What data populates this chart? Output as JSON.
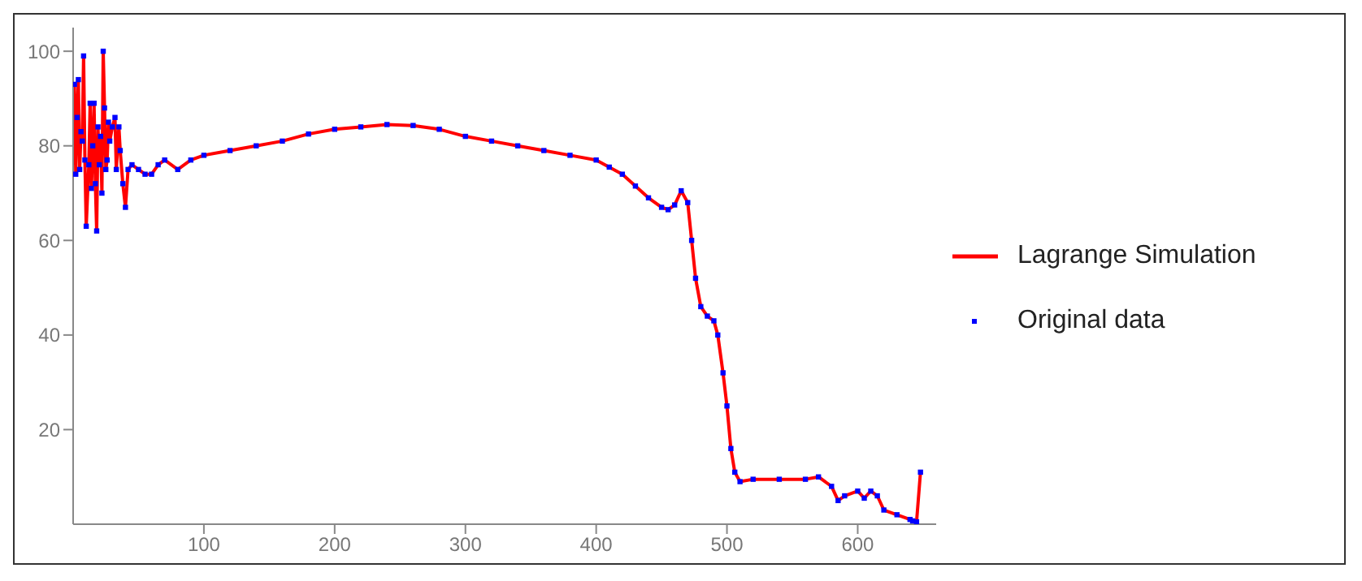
{
  "chart_data": {
    "type": "line",
    "x": [
      1,
      2,
      3,
      4,
      5,
      6,
      7,
      8,
      9,
      10,
      12,
      13,
      14,
      15,
      16,
      17,
      18,
      19,
      20,
      21,
      22,
      23,
      24,
      25,
      26,
      27,
      28,
      30,
      32,
      33,
      35,
      36,
      38,
      40,
      42,
      45,
      50,
      55,
      60,
      65,
      70,
      80,
      90,
      100,
      120,
      140,
      160,
      180,
      200,
      220,
      240,
      260,
      280,
      300,
      320,
      340,
      360,
      380,
      400,
      410,
      420,
      430,
      440,
      450,
      455,
      460,
      465,
      470,
      473,
      476,
      480,
      485,
      490,
      493,
      497,
      500,
      503,
      506,
      510,
      520,
      540,
      560,
      570,
      580,
      585,
      590,
      600,
      605,
      610,
      615,
      620,
      630,
      640,
      642,
      645,
      648
    ],
    "series": [
      {
        "name": "Lagrange Simulation",
        "color": "#ff0000",
        "marker": "none",
        "values": [
          93,
          74,
          86,
          94,
          75,
          83,
          81,
          99,
          77,
          63,
          76,
          89,
          71,
          80,
          89,
          72,
          62,
          84,
          76,
          82,
          70,
          100,
          88,
          75,
          77,
          85,
          81,
          84,
          86,
          75,
          84,
          79,
          72,
          67,
          75,
          76,
          75,
          74,
          74,
          76,
          77,
          75,
          77,
          78,
          79,
          80,
          81,
          82.5,
          83.5,
          84,
          84.5,
          84.3,
          83.5,
          82,
          81,
          80,
          79,
          78,
          77,
          75.5,
          74,
          71.5,
          69,
          67,
          66.5,
          67.5,
          70.5,
          68,
          60,
          52,
          46,
          44,
          43,
          40,
          32,
          25,
          16,
          11,
          9,
          9.5,
          9.5,
          9.5,
          10,
          8,
          5,
          6,
          7,
          5.5,
          7,
          6,
          3,
          2,
          1,
          0.7,
          0.5,
          11
        ]
      },
      {
        "name": "Original data",
        "type": "scatter",
        "color": "#0000ff",
        "marker": "square",
        "values": [
          93,
          74,
          86,
          94,
          75,
          83,
          81,
          99,
          77,
          63,
          76,
          89,
          71,
          80,
          89,
          72,
          62,
          84,
          76,
          82,
          70,
          100,
          88,
          75,
          77,
          85,
          81,
          84,
          86,
          75,
          84,
          79,
          72,
          67,
          75,
          76,
          75,
          74,
          74,
          76,
          77,
          75,
          77,
          78,
          79,
          80,
          81,
          82.5,
          83.5,
          84,
          84.5,
          84.3,
          83.5,
          82,
          81,
          80,
          79,
          78,
          77,
          75.5,
          74,
          71.5,
          69,
          67,
          66.5,
          67.5,
          70.5,
          68,
          60,
          52,
          46,
          44,
          43,
          40,
          32,
          25,
          16,
          11,
          9,
          9.5,
          9.5,
          9.5,
          10,
          8,
          5,
          6,
          7,
          5.5,
          7,
          6,
          3,
          2,
          1,
          0.7,
          0.5,
          11
        ]
      }
    ],
    "xlim": [
      0,
      660
    ],
    "ylim": [
      0,
      105
    ],
    "xticks": [
      100,
      200,
      300,
      400,
      500,
      600
    ],
    "yticks": [
      20,
      40,
      60,
      80,
      100
    ],
    "grid": false,
    "legend": "right"
  }
}
